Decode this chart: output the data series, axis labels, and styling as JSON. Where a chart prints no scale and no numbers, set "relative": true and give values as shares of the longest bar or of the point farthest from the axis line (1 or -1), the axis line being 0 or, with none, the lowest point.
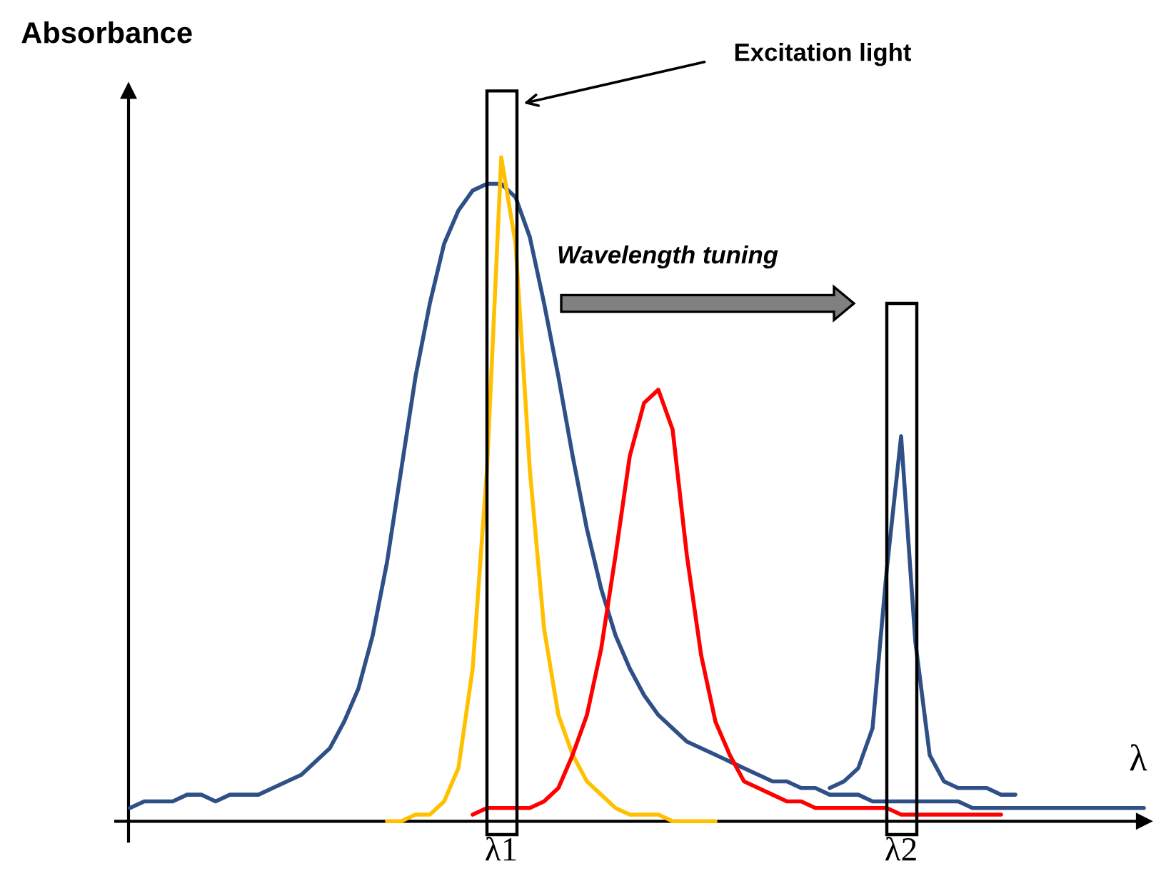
{
  "chart_data": {
    "type": "line",
    "relative": true,
    "tick_labels": "x",
    "ylabel": "Absorbance",
    "xlabel": "λ",
    "annotations": [
      "Excitation light",
      "Wavelength tuning"
    ],
    "categories": [
      null,
      null,
      null,
      null,
      null,
      null,
      null,
      null,
      null,
      null,
      null,
      null,
      null,
      null,
      null,
      null,
      null,
      null,
      null,
      null,
      null,
      null,
      null,
      null,
      null,
      null,
      null,
      null,
      "λ1",
      null,
      null,
      null,
      null,
      null,
      null,
      null,
      null,
      null,
      null,
      null,
      null,
      null,
      null,
      null,
      null,
      null,
      null,
      null,
      null,
      null,
      null,
      null,
      null,
      null,
      null,
      null,
      "λ2",
      null,
      null,
      null,
      null,
      null,
      null,
      null,
      null,
      null,
      null,
      null,
      null,
      null,
      null,
      null,
      null,
      null
    ],
    "series": [
      {
        "color": "#2f5086",
        "values": [
          null,
          null,
          0.02,
          0.03,
          0.03,
          0.03,
          0.04,
          0.04,
          0.03,
          0.04,
          0.04,
          0.04,
          0.05,
          0.06,
          0.07,
          0.09,
          0.11,
          0.15,
          0.2,
          0.28,
          0.39,
          0.53,
          0.67,
          0.78,
          0.87,
          0.92,
          0.95,
          0.96,
          0.96,
          0.94,
          0.88,
          0.78,
          0.67,
          0.55,
          0.44,
          0.35,
          0.28,
          0.23,
          0.19,
          0.16,
          0.14,
          0.12,
          0.11,
          0.1,
          0.09,
          0.08,
          0.07,
          0.06,
          0.06,
          0.05,
          0.05,
          0.04,
          0.04,
          0.04,
          0.03,
          0.03,
          0.03,
          0.03,
          0.03,
          0.03,
          0.03,
          0.02,
          0.02,
          0.02,
          0.02,
          0.02,
          0.02,
          0.02,
          0.02,
          0.02,
          0.02,
          0.02,
          0.02,
          0.02
        ]
      },
      {
        "color": "#2f5086",
        "values": [
          null,
          null,
          null,
          null,
          null,
          null,
          null,
          null,
          null,
          null,
          null,
          null,
          null,
          null,
          null,
          null,
          null,
          null,
          null,
          null,
          null,
          null,
          null,
          null,
          null,
          null,
          null,
          null,
          null,
          null,
          null,
          null,
          null,
          null,
          null,
          null,
          null,
          null,
          null,
          null,
          null,
          null,
          null,
          null,
          null,
          null,
          null,
          null,
          null,
          null,
          null,
          0.05,
          0.06,
          0.08,
          0.14,
          0.38,
          0.58,
          0.27,
          0.1,
          0.06,
          0.05,
          0.05,
          0.05,
          0.04,
          0.04,
          null,
          null,
          null,
          null,
          null,
          null,
          null,
          null,
          null
        ]
      },
      {
        "color": "#ffc000",
        "values": [
          null,
          null,
          null,
          null,
          null,
          null,
          null,
          null,
          null,
          null,
          null,
          null,
          null,
          null,
          null,
          null,
          null,
          null,
          null,
          null,
          0,
          0,
          0.01,
          0.01,
          0.03,
          0.08,
          0.23,
          0.53,
          1,
          0.87,
          0.53,
          0.29,
          0.16,
          0.1,
          0.06,
          0.04,
          0.02,
          0.01,
          0.01,
          0.01,
          0,
          0,
          0,
          0,
          null,
          null,
          null,
          null,
          null,
          null,
          null,
          null,
          null,
          null,
          null,
          null,
          null,
          null,
          null,
          null,
          null,
          null,
          null,
          null,
          null,
          null,
          null,
          null,
          null,
          null,
          null,
          null,
          null,
          null
        ]
      },
      {
        "color": "#ff0000",
        "values": [
          null,
          null,
          null,
          null,
          null,
          null,
          null,
          null,
          null,
          null,
          null,
          null,
          null,
          null,
          null,
          null,
          null,
          null,
          null,
          null,
          null,
          null,
          null,
          null,
          null,
          null,
          0.01,
          0.02,
          0.02,
          0.02,
          0.02,
          0.03,
          0.05,
          0.1,
          0.16,
          0.26,
          0.4,
          0.55,
          0.63,
          0.65,
          0.59,
          0.4,
          0.25,
          0.15,
          0.1,
          0.06,
          0.05,
          0.04,
          0.03,
          0.03,
          0.02,
          0.02,
          0.02,
          0.02,
          0.02,
          0.02,
          0.01,
          0.01,
          0.01,
          0.01,
          0.01,
          0.01,
          0.01,
          0.01,
          null,
          null,
          null,
          null,
          null,
          null,
          null,
          null,
          null,
          null
        ]
      }
    ]
  }
}
